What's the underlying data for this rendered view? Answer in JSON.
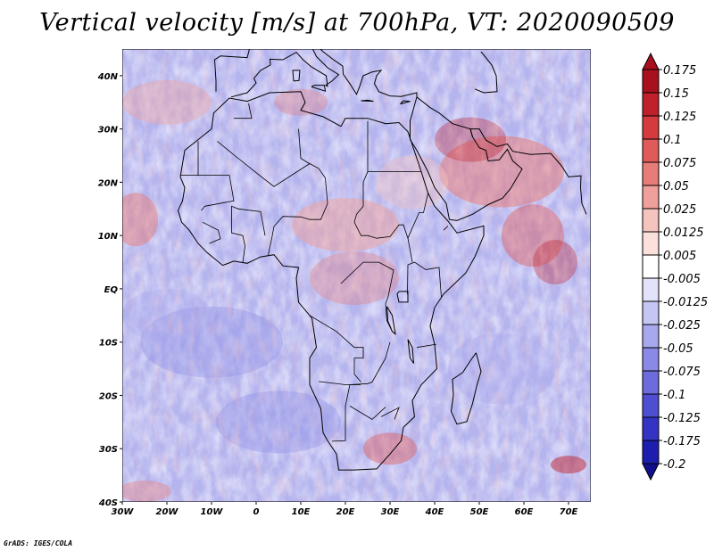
{
  "title": "Vertical velocity [m/s] at 700hPa, VT: 2020090509",
  "credit": "GrADS: IGES/COLA",
  "map": {
    "lat_labels": [
      "40N",
      "30N",
      "20N",
      "10N",
      "EQ",
      "10S",
      "20S",
      "30S",
      "40S"
    ],
    "lon_labels": [
      "30W",
      "20W",
      "10W",
      "0",
      "10E",
      "20E",
      "30E",
      "40E",
      "50E",
      "60E",
      "70E"
    ],
    "lon_range": [
      -30,
      75
    ],
    "lat_range": [
      -40,
      45
    ]
  },
  "colorbar": {
    "labels": [
      "0.175",
      "0.15",
      "0.125",
      "0.1",
      "0.075",
      "0.05",
      "0.025",
      "0.0125",
      "0.005",
      "-0.005",
      "-0.0125",
      "-0.025",
      "-0.05",
      "-0.075",
      "-0.1",
      "-0.125",
      "-0.175",
      "-0.2"
    ],
    "colors": [
      "#a8101e",
      "#c0202a",
      "#d43a3e",
      "#e05a5a",
      "#e87c78",
      "#f0a09a",
      "#f6c4be",
      "#fbe0dc",
      "#ffffff",
      "#e2e2fa",
      "#c6c6f4",
      "#a8a8ee",
      "#8a8ae6",
      "#6c6cde",
      "#4e4ed2",
      "#3434c4",
      "#1e1eae",
      "#10108c"
    ]
  },
  "colors": {
    "positive": "#e05a5a",
    "negative": "#6c6cde",
    "neutral": "#ffffff",
    "coastline": "#000000"
  }
}
